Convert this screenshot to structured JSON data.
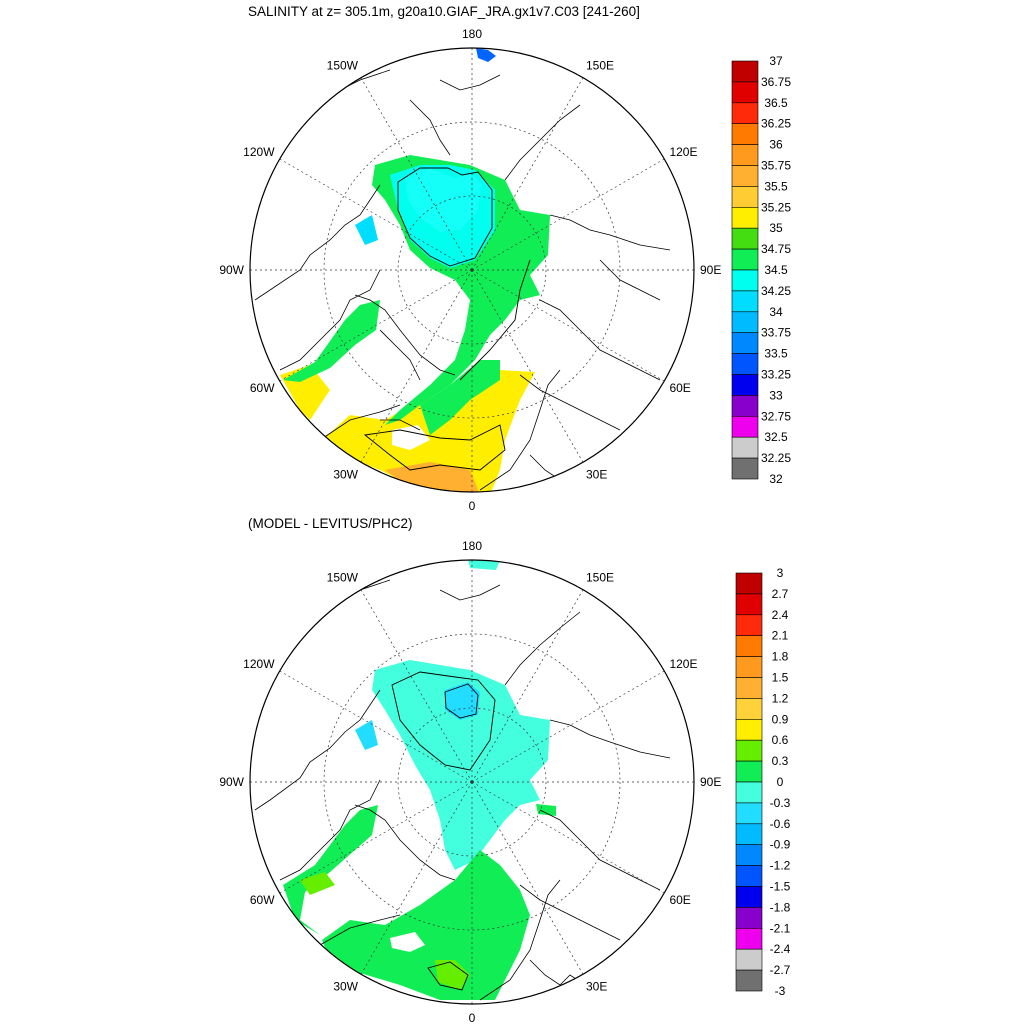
{
  "panels": [
    {
      "title": "SALINITY at z= 305.1m, g20a10.GIAF_JRA.gx1v7.C03 [241-260]",
      "lon_labels": [
        "180",
        "150E",
        "120E",
        "90E",
        "60E",
        "30E",
        "0",
        "30W",
        "60W",
        "90W",
        "120W",
        "150W"
      ],
      "colorbar": {
        "labels": [
          "37",
          "36.75",
          "36.5",
          "36.25",
          "36",
          "35.75",
          "35.5",
          "35.25",
          "35",
          "34.75",
          "34.5",
          "34.25",
          "34",
          "33.75",
          "33.5",
          "33.25",
          "33",
          "32.75",
          "32.5",
          "32.25",
          "32"
        ],
        "colors": [
          "#c00000",
          "#e00000",
          "#ff2a0a",
          "#ff7a00",
          "#ff9a1e",
          "#ffb030",
          "#ffcc33",
          "#ffee00",
          "#44dd11",
          "#11ee55",
          "#00ffee",
          "#00ddff",
          "#00bbff",
          "#0088ff",
          "#0055ff",
          "#0000ee",
          "#8800cc",
          "#ee00ee",
          "#cccccc",
          "#707070"
        ]
      }
    },
    {
      "title": "(MODEL - LEVITUS/PHC2)",
      "lon_labels": [
        "180",
        "150E",
        "120E",
        "90E",
        "60E",
        "30E",
        "0",
        "30W",
        "60W",
        "90W",
        "120W",
        "150W"
      ],
      "colorbar": {
        "labels": [
          "3",
          "2.7",
          "2.4",
          "2.1",
          "1.8",
          "1.5",
          "1.2",
          "0.9",
          "0.6",
          "0.3",
          "0",
          "-0.3",
          "-0.6",
          "-0.9",
          "-1.2",
          "-1.5",
          "-1.8",
          "-2.1",
          "-2.4",
          "-2.7",
          "-3"
        ],
        "colors": [
          "#c00000",
          "#e00000",
          "#ff2a0a",
          "#ff7a00",
          "#ff9a1e",
          "#ffb030",
          "#ffd23a",
          "#ffee00",
          "#66ee00",
          "#11ee55",
          "#44ffdd",
          "#22ddff",
          "#00bbff",
          "#0088ff",
          "#0055ff",
          "#0000ee",
          "#8800cc",
          "#ee00ee",
          "#cccccc",
          "#707070"
        ]
      }
    }
  ]
}
